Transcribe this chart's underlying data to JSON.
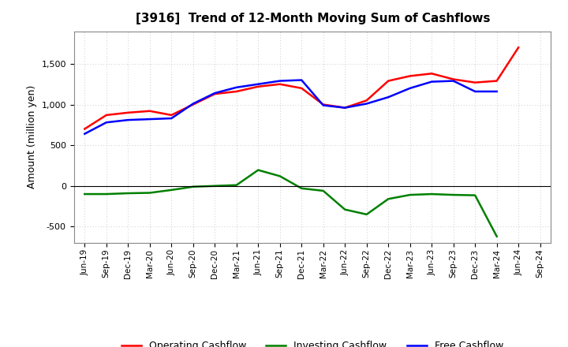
{
  "title": "[3916]  Trend of 12-Month Moving Sum of Cashflows",
  "ylabel": "Amount (million yen)",
  "x_labels": [
    "Jun-19",
    "Sep-19",
    "Dec-19",
    "Mar-20",
    "Jun-20",
    "Sep-20",
    "Dec-20",
    "Mar-21",
    "Jun-21",
    "Sep-21",
    "Dec-21",
    "Mar-22",
    "Jun-22",
    "Sep-22",
    "Dec-22",
    "Mar-23",
    "Jun-23",
    "Sep-23",
    "Dec-23",
    "Mar-24",
    "Jun-24",
    "Sep-24"
  ],
  "operating": [
    700,
    870,
    900,
    920,
    870,
    1000,
    1130,
    1160,
    1220,
    1250,
    1200,
    1000,
    960,
    1050,
    1290,
    1350,
    1380,
    1310,
    1270,
    1290,
    1700,
    null
  ],
  "investing": [
    -100,
    -100,
    -90,
    -85,
    -50,
    -10,
    0,
    10,
    195,
    120,
    -30,
    -60,
    -290,
    -350,
    -160,
    -110,
    -100,
    -110,
    -115,
    -620,
    null,
    null
  ],
  "free": [
    640,
    780,
    810,
    820,
    830,
    1010,
    1140,
    1210,
    1250,
    1290,
    1300,
    990,
    960,
    1010,
    1090,
    1200,
    1280,
    1290,
    1160,
    1160,
    null,
    null
  ],
  "operating_color": "#ff0000",
  "investing_color": "#008000",
  "free_color": "#0000ff",
  "ylim": [
    -700,
    1900
  ],
  "yticks": [
    -500,
    0,
    500,
    1000,
    1500
  ],
  "bg_color": "#ffffff",
  "grid_color": "#aaaaaa"
}
